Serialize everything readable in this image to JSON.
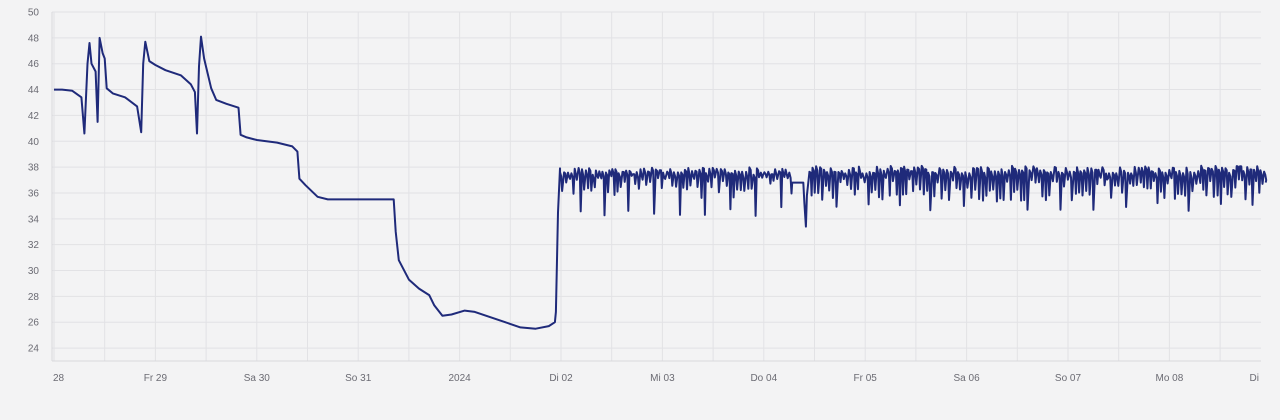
{
  "chart_data": {
    "type": "line",
    "title": "",
    "xlabel": "",
    "ylabel": "",
    "ylim": [
      23,
      50
    ],
    "y_ticks": [
      24,
      26,
      28,
      30,
      32,
      34,
      36,
      38,
      40,
      42,
      44,
      46,
      48,
      50
    ],
    "x_range_days": [
      0,
      11.95
    ],
    "x_ticks": [
      {
        "day": 0,
        "label": "28"
      },
      {
        "day": 1,
        "label": "Fr 29"
      },
      {
        "day": 2,
        "label": "Sa 30"
      },
      {
        "day": 3,
        "label": "So 31"
      },
      {
        "day": 4,
        "label": "2024"
      },
      {
        "day": 5,
        "label": "Di 02"
      },
      {
        "day": 6,
        "label": "Mi 03"
      },
      {
        "day": 7,
        "label": "Do 04"
      },
      {
        "day": 8,
        "label": "Fr 05"
      },
      {
        "day": 9,
        "label": "Sa 06"
      },
      {
        "day": 10,
        "label": "So 07"
      },
      {
        "day": 11,
        "label": "Mo 08"
      },
      {
        "day": 12,
        "label": "Di"
      }
    ],
    "grid": true,
    "series": [
      {
        "name": "",
        "color": "#1f2a7a",
        "points": [
          [
            0.0,
            44.0
          ],
          [
            0.08,
            44.0
          ],
          [
            0.18,
            43.9
          ],
          [
            0.27,
            43.4
          ],
          [
            0.3,
            40.6
          ],
          [
            0.33,
            46.0
          ],
          [
            0.35,
            47.6
          ],
          [
            0.37,
            46.0
          ],
          [
            0.41,
            45.4
          ],
          [
            0.43,
            41.5
          ],
          [
            0.45,
            48.0
          ],
          [
            0.48,
            46.8
          ],
          [
            0.5,
            46.4
          ],
          [
            0.52,
            44.1
          ],
          [
            0.58,
            43.7
          ],
          [
            0.7,
            43.4
          ],
          [
            0.82,
            42.7
          ],
          [
            0.86,
            40.7
          ],
          [
            0.88,
            46.0
          ],
          [
            0.9,
            47.7
          ],
          [
            0.94,
            46.2
          ],
          [
            1.0,
            45.9
          ],
          [
            1.1,
            45.5
          ],
          [
            1.25,
            45.1
          ],
          [
            1.35,
            44.4
          ],
          [
            1.39,
            43.8
          ],
          [
            1.41,
            40.6
          ],
          [
            1.43,
            45.8
          ],
          [
            1.45,
            48.1
          ],
          [
            1.48,
            46.4
          ],
          [
            1.55,
            44.1
          ],
          [
            1.6,
            43.2
          ],
          [
            1.7,
            42.9
          ],
          [
            1.82,
            42.6
          ],
          [
            1.84,
            40.5
          ],
          [
            1.9,
            40.3
          ],
          [
            2.0,
            40.1
          ],
          [
            2.2,
            39.9
          ],
          [
            2.35,
            39.6
          ],
          [
            2.4,
            39.2
          ],
          [
            2.42,
            37.1
          ],
          [
            2.48,
            36.6
          ],
          [
            2.6,
            35.7
          ],
          [
            2.7,
            35.5
          ],
          [
            3.0,
            35.5
          ],
          [
            3.3,
            35.5
          ],
          [
            3.35,
            35.5
          ],
          [
            3.37,
            33.0
          ],
          [
            3.4,
            30.8
          ],
          [
            3.5,
            29.3
          ],
          [
            3.6,
            28.6
          ],
          [
            3.7,
            28.1
          ],
          [
            3.75,
            27.3
          ],
          [
            3.83,
            26.5
          ],
          [
            3.92,
            26.6
          ],
          [
            4.05,
            26.9
          ],
          [
            4.15,
            26.8
          ],
          [
            4.3,
            26.4
          ],
          [
            4.45,
            26.0
          ],
          [
            4.6,
            25.6
          ],
          [
            4.75,
            25.5
          ],
          [
            4.88,
            25.7
          ],
          [
            4.94,
            26.0
          ],
          [
            4.95,
            26.8
          ],
          [
            4.97,
            34.5
          ],
          [
            4.99,
            37.9
          ]
        ],
        "noisy_segments": [
          {
            "start_day": 4.99,
            "end_day": 7.28,
            "period_days": 0.035,
            "high": 38.0,
            "low_typical": 35.6,
            "low_deep": 34.2,
            "deep_every": 7
          },
          {
            "start_day": 7.28,
            "end_day": 7.38,
            "flat": 36.8
          },
          {
            "start_day": 7.38,
            "end_day": 7.45,
            "dip_to": 33.4
          },
          {
            "start_day": 7.45,
            "end_day": 11.95,
            "period_days": 0.035,
            "high": 38.1,
            "low_typical": 35.4,
            "low_deep": 34.6,
            "deep_every": 9
          }
        ]
      }
    ]
  }
}
